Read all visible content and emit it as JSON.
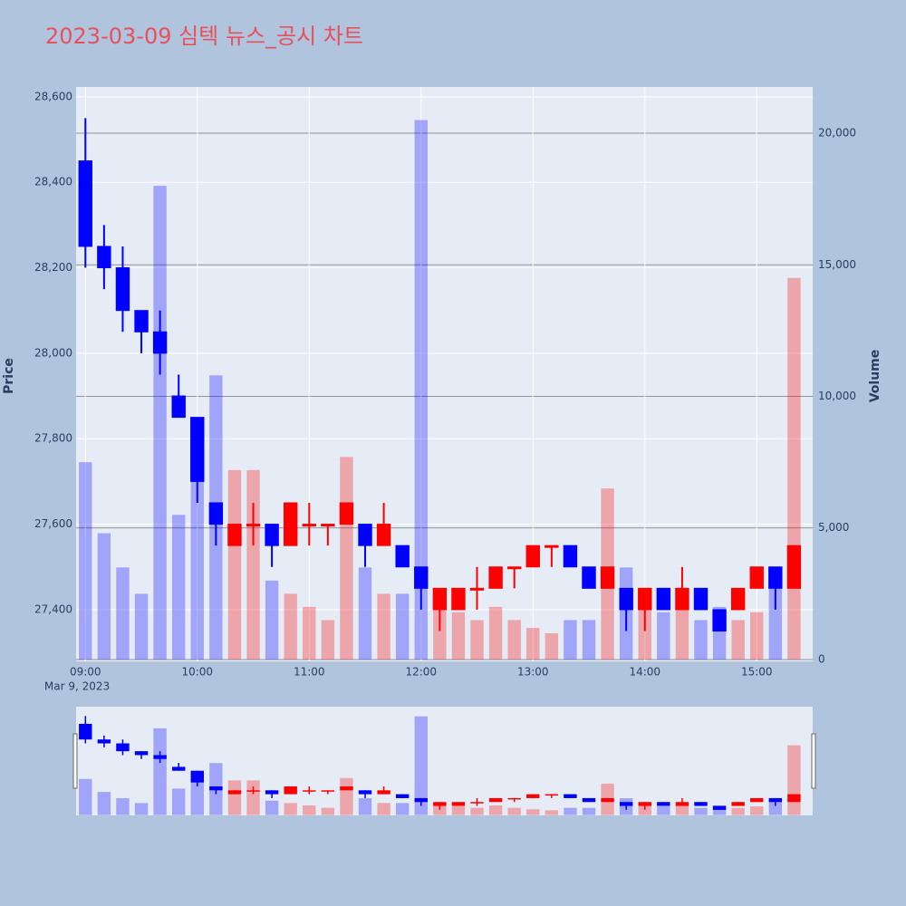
{
  "chart_data": {
    "type": "candlestick",
    "title": "2023-03-09 심텍 뉴스_공시 차트",
    "y_axis_label": "Price",
    "y2_axis_label": "Volume",
    "x_date_label": "Mar 9, 2023",
    "increasing_color": "#ff0000",
    "decreasing_color": "#0000ff",
    "volume_increasing_color": "rgba(255,0,0,0.3)",
    "volume_decreasing_color": "rgba(0,0,255,0.3)",
    "x": [
      "09:00",
      "09:10",
      "09:20",
      "09:30",
      "09:40",
      "09:50",
      "10:00",
      "10:10",
      "10:20",
      "10:30",
      "10:40",
      "10:50",
      "11:00",
      "11:10",
      "11:20",
      "11:30",
      "11:40",
      "11:50",
      "12:00",
      "12:10",
      "12:20",
      "12:30",
      "12:40",
      "12:50",
      "13:00",
      "13:10",
      "13:20",
      "13:30",
      "13:40",
      "13:50",
      "14:00",
      "14:10",
      "14:20",
      "14:30",
      "14:40",
      "14:50",
      "15:00",
      "15:10",
      "15:20"
    ],
    "open": [
      28450,
      28250,
      28200,
      28100,
      28050,
      27900,
      27850,
      27650,
      27550,
      27600,
      27600,
      27550,
      27600,
      27600,
      27600,
      27600,
      27550,
      27550,
      27500,
      27400,
      27400,
      27450,
      27450,
      27500,
      27500,
      27550,
      27550,
      27500,
      27450,
      27450,
      27400,
      27450,
      27400,
      27450,
      27400,
      27400,
      27450,
      27500,
      27450
    ],
    "high": [
      28550,
      28300,
      28250,
      28100,
      28100,
      27950,
      27850,
      27650,
      27600,
      27650,
      27600,
      27650,
      27650,
      27600,
      27650,
      27600,
      27650,
      27550,
      27500,
      27450,
      27450,
      27500,
      27500,
      27500,
      27550,
      27550,
      27550,
      27500,
      27500,
      27450,
      27450,
      27450,
      27500,
      27450,
      27400,
      27450,
      27500,
      27500,
      27550
    ],
    "low": [
      28200,
      28150,
      28050,
      28000,
      27950,
      27850,
      27650,
      27550,
      27550,
      27550,
      27500,
      27550,
      27550,
      27550,
      27600,
      27500,
      27550,
      27500,
      27400,
      27350,
      27400,
      27400,
      27450,
      27450,
      27500,
      27500,
      27500,
      27450,
      27450,
      27350,
      27350,
      27400,
      27400,
      27400,
      27350,
      27400,
      27450,
      27400,
      27450
    ],
    "close": [
      28250,
      28200,
      28100,
      28050,
      28000,
      27850,
      27700,
      27600,
      27600,
      27600,
      27550,
      27650,
      27600,
      27600,
      27650,
      27550,
      27600,
      27500,
      27450,
      27450,
      27450,
      27450,
      27500,
      27500,
      27550,
      27550,
      27500,
      27450,
      27500,
      27400,
      27450,
      27400,
      27450,
      27400,
      27350,
      27450,
      27500,
      27450,
      27550
    ],
    "volume": [
      7500,
      4800,
      3500,
      2500,
      18000,
      5500,
      7600,
      10800,
      7200,
      7200,
      3000,
      2500,
      2000,
      1500,
      7700,
      3500,
      2500,
      2500,
      20500,
      2000,
      1800,
      1500,
      2000,
      1500,
      1200,
      1000,
      1500,
      1500,
      6500,
      3500,
      2300,
      1800,
      2000,
      1500,
      2000,
      1500,
      1800,
      3000,
      14500
    ],
    "xlim": [
      "08:55",
      "15:30"
    ],
    "xticks": [
      "09:00",
      "10:00",
      "11:00",
      "12:00",
      "13:00",
      "14:00",
      "15:00"
    ],
    "ylim": [
      27279,
      28623
    ],
    "yticks": [
      {
        "value": 27400,
        "label": "27,400"
      },
      {
        "value": 27600,
        "label": "27,600"
      },
      {
        "value": 27800,
        "label": "27,800"
      },
      {
        "value": 28000,
        "label": "28,000"
      },
      {
        "value": 28200,
        "label": "28,200"
      },
      {
        "value": 28400,
        "label": "28,400"
      },
      {
        "value": 28600,
        "label": "28,600"
      }
    ],
    "y2lim": [
      -69,
      21756
    ],
    "y2ticks": [
      0,
      {
        "value": 5000,
        "label": "5,000"
      },
      {
        "value": 10000,
        "label": "10,000"
      },
      {
        "value": 15000,
        "label": "15,000"
      },
      {
        "value": 20000,
        "label": "20,000"
      }
    ]
  }
}
